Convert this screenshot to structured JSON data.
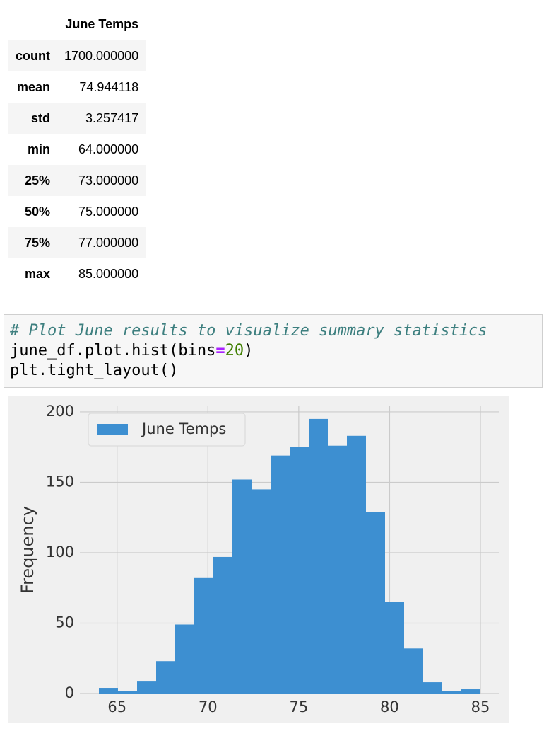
{
  "table": {
    "header": "June Temps",
    "rows": [
      [
        "count",
        "1700.000000"
      ],
      [
        "mean",
        "74.944118"
      ],
      [
        "std",
        "3.257417"
      ],
      [
        "min",
        "64.000000"
      ],
      [
        "25%",
        "73.000000"
      ],
      [
        "50%",
        "75.000000"
      ],
      [
        "75%",
        "77.000000"
      ],
      [
        "max",
        "85.000000"
      ]
    ]
  },
  "code": {
    "comment": "# Plot June results to visualize summary statistics",
    "line2": [
      "june_df.plot.hist(bins",
      "=",
      "20",
      ")"
    ],
    "line3": "plt.tight_layout()"
  },
  "chart_data": {
    "type": "histogram",
    "ylabel": "Frequency",
    "bins": [
      64,
      65.05,
      66.1,
      67.15,
      68.2,
      69.25,
      70.3,
      71.35,
      72.4,
      73.45,
      74.5,
      75.55,
      76.6,
      77.65,
      78.7,
      79.75,
      80.8,
      81.85,
      82.9,
      83.95,
      85
    ],
    "series": [
      {
        "name": "June Temps",
        "color": "#3d8fd1",
        "values": [
          4,
          2,
          9,
          23,
          49,
          82,
          97,
          152,
          145,
          169,
          175,
          195,
          176,
          183,
          129,
          65,
          32,
          8,
          2,
          3
        ]
      }
    ],
    "xlim": [
      62.95,
      86.05
    ],
    "ylim": [
      0,
      204
    ],
    "xticks": [
      65,
      70,
      75,
      80,
      85
    ],
    "yticks": [
      0,
      50,
      100,
      150,
      200
    ],
    "grid": true,
    "legend": "upper left"
  }
}
